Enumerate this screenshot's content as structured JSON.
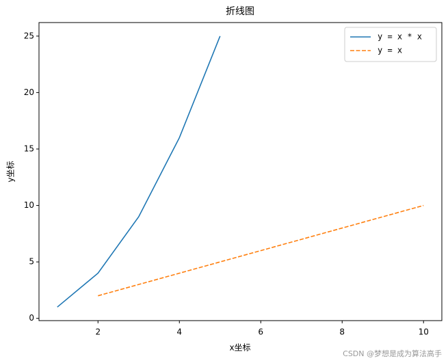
{
  "chart_data": {
    "type": "line",
    "title": "折线图",
    "x_label": "x坐标",
    "y_label": "y坐标",
    "series": [
      {
        "name": "y = x * x",
        "color": "#1f77b4",
        "linestyle": "solid",
        "x": [
          1,
          2,
          3,
          4,
          5
        ],
        "values": [
          1,
          4,
          9,
          16,
          25
        ]
      },
      {
        "name": "y = x",
        "color": "#ff7f0e",
        "linestyle": "dashed",
        "x": [
          2,
          3,
          4,
          5,
          6,
          7,
          8,
          9,
          10
        ],
        "values": [
          2,
          3,
          4,
          5,
          6,
          7,
          8,
          9,
          10
        ]
      }
    ],
    "xlim": [
      0.55,
      10.45
    ],
    "ylim": [
      -0.2,
      26.2
    ],
    "xticks": [
      2,
      4,
      6,
      8,
      10
    ],
    "yticks": [
      0,
      5,
      10,
      15,
      20,
      25
    ],
    "legend": "upper right",
    "grid": false
  },
  "watermark": "CSDN @梦想是成为算法高手"
}
